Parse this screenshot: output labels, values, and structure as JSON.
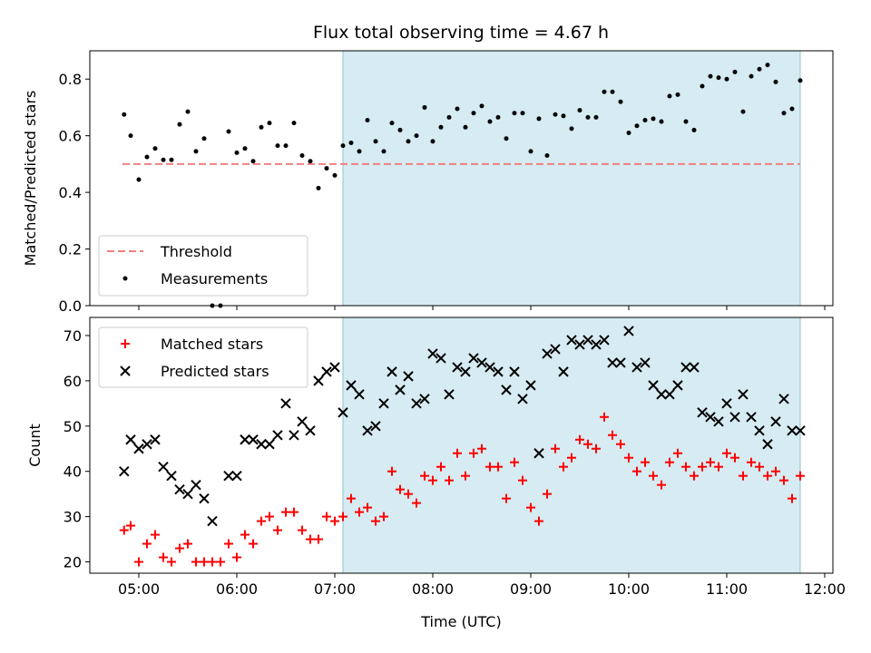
{
  "chart_data": [
    {
      "id": "ratio",
      "type": "scatter",
      "title": "Flux total observing time = 4.67 h",
      "xlabel": "",
      "ylabel": "Matched/Predicted stars",
      "xlim": [
        "04:30",
        "12:05"
      ],
      "ylim": [
        0,
        0.9
      ],
      "yticks": [
        0.0,
        0.2,
        0.4,
        0.6,
        0.8
      ],
      "ytick_labels": [
        "0.0",
        "0.2",
        "0.4",
        "0.6",
        "0.8"
      ],
      "xticks": [
        "05:00",
        "06:00",
        "07:00",
        "08:00",
        "09:00",
        "10:00",
        "11:00",
        "12:00"
      ],
      "shaded_span": [
        "07:05",
        "11:45"
      ],
      "shade_color": "#add8e6",
      "legend_position": "lower-left",
      "threshold": {
        "name": "Threshold",
        "value": 0.5,
        "x_range": [
          "04:50",
          "11:45"
        ],
        "color": "#f08080",
        "style": "dashed"
      },
      "series": [
        {
          "name": "Measurements",
          "marker": "dot",
          "color": "#000000",
          "x": [
            "04:51",
            "04:55",
            "05:00",
            "05:05",
            "05:10",
            "05:15",
            "05:20",
            "05:25",
            "05:30",
            "05:35",
            "05:40",
            "05:45",
            "05:50",
            "05:55",
            "06:00",
            "06:05",
            "06:10",
            "06:15",
            "06:20",
            "06:25",
            "06:30",
            "06:35",
            "06:40",
            "06:45",
            "06:50",
            "06:55",
            "07:00",
            "07:05",
            "07:10",
            "07:15",
            "07:20",
            "07:25",
            "07:30",
            "07:35",
            "07:40",
            "07:45",
            "07:50",
            "07:55",
            "08:00",
            "08:05",
            "08:10",
            "08:15",
            "08:20",
            "08:25",
            "08:30",
            "08:35",
            "08:40",
            "08:45",
            "08:50",
            "08:55",
            "09:00",
            "09:05",
            "09:10",
            "09:15",
            "09:20",
            "09:25",
            "09:30",
            "09:35",
            "09:40",
            "09:45",
            "09:50",
            "09:55",
            "10:00",
            "10:05",
            "10:10",
            "10:15",
            "10:20",
            "10:25",
            "10:30",
            "10:35",
            "10:40",
            "10:45",
            "10:50",
            "10:55",
            "11:00",
            "11:05",
            "11:10",
            "11:15",
            "11:20",
            "11:25",
            "11:30",
            "11:35",
            "11:40",
            "11:45"
          ],
          "y": [
            0.675,
            0.6,
            0.445,
            0.525,
            0.555,
            0.515,
            0.515,
            0.64,
            0.685,
            0.545,
            0.59,
            0.0,
            0.0,
            0.615,
            0.54,
            0.555,
            0.51,
            0.63,
            0.645,
            0.565,
            0.565,
            0.645,
            0.53,
            0.51,
            0.415,
            0.485,
            0.46,
            0.565,
            0.575,
            0.545,
            0.655,
            0.58,
            0.545,
            0.645,
            0.62,
            0.58,
            0.6,
            0.7,
            0.58,
            0.63,
            0.665,
            0.695,
            0.63,
            0.68,
            0.705,
            0.65,
            0.665,
            0.59,
            0.68,
            0.68,
            0.545,
            0.66,
            0.53,
            0.675,
            0.67,
            0.625,
            0.69,
            0.665,
            0.665,
            0.755,
            0.755,
            0.72,
            0.61,
            0.635,
            0.655,
            0.66,
            0.65,
            0.74,
            0.745,
            0.65,
            0.62,
            0.775,
            0.81,
            0.805,
            0.8,
            0.825,
            0.685,
            0.81,
            0.835,
            0.85,
            0.79,
            0.68,
            0.695,
            0.795
          ]
        }
      ]
    },
    {
      "id": "counts",
      "type": "scatter",
      "title": "",
      "xlabel": "Time (UTC)",
      "ylabel": "Count",
      "xlim": [
        "04:30",
        "12:05"
      ],
      "ylim": [
        17.5,
        74
      ],
      "yticks": [
        20,
        30,
        40,
        50,
        60,
        70
      ],
      "ytick_labels": [
        "20",
        "30",
        "40",
        "50",
        "60",
        "70"
      ],
      "xticks": [
        "05:00",
        "06:00",
        "07:00",
        "08:00",
        "09:00",
        "10:00",
        "11:00",
        "12:00"
      ],
      "xtick_labels": [
        "05:00",
        "06:00",
        "07:00",
        "08:00",
        "09:00",
        "10:00",
        "11:00",
        "12:00"
      ],
      "shaded_span": [
        "07:05",
        "11:45"
      ],
      "shade_color": "#add8e6",
      "legend_position": "upper-left",
      "series": [
        {
          "name": "Matched stars",
          "marker": "plus",
          "color": "#ff0000",
          "x": [
            "04:51",
            "04:55",
            "05:00",
            "05:05",
            "05:10",
            "05:15",
            "05:20",
            "05:25",
            "05:30",
            "05:35",
            "05:40",
            "05:45",
            "05:50",
            "05:55",
            "06:00",
            "06:05",
            "06:10",
            "06:15",
            "06:20",
            "06:25",
            "06:30",
            "06:35",
            "06:40",
            "06:45",
            "06:50",
            "06:55",
            "07:00",
            "07:05",
            "07:10",
            "07:15",
            "07:20",
            "07:25",
            "07:30",
            "07:35",
            "07:40",
            "07:45",
            "07:50",
            "07:55",
            "08:00",
            "08:05",
            "08:10",
            "08:15",
            "08:20",
            "08:25",
            "08:30",
            "08:35",
            "08:40",
            "08:45",
            "08:50",
            "08:55",
            "09:00",
            "09:05",
            "09:10",
            "09:15",
            "09:20",
            "09:25",
            "09:30",
            "09:35",
            "09:40",
            "09:45",
            "09:50",
            "09:55",
            "10:00",
            "10:05",
            "10:10",
            "10:15",
            "10:20",
            "10:25",
            "10:30",
            "10:35",
            "10:40",
            "10:45",
            "10:50",
            "10:55",
            "11:00",
            "11:05",
            "11:10",
            "11:15",
            "11:20",
            "11:25",
            "11:30",
            "11:35",
            "11:40",
            "11:45"
          ],
          "y": [
            27,
            28,
            20,
            24,
            26,
            21,
            20,
            23,
            24,
            20,
            20,
            20,
            20,
            24,
            21,
            26,
            24,
            29,
            30,
            27,
            31,
            31,
            27,
            25,
            25,
            30,
            29,
            30,
            34,
            31,
            32,
            29,
            30,
            40,
            36,
            35,
            33,
            39,
            38,
            41,
            38,
            44,
            39,
            44,
            45,
            41,
            41,
            34,
            42,
            38,
            32,
            29,
            35,
            45,
            41,
            43,
            47,
            46,
            45,
            52,
            48,
            46,
            43,
            40,
            42,
            39,
            37,
            42,
            44,
            41,
            39,
            41,
            42,
            41,
            44,
            43,
            39,
            42,
            41,
            39,
            40,
            38,
            34,
            39
          ]
        },
        {
          "name": "Predicted stars",
          "marker": "x",
          "color": "#000000",
          "x": [
            "04:51",
            "04:55",
            "05:00",
            "05:05",
            "05:10",
            "05:15",
            "05:20",
            "05:25",
            "05:30",
            "05:35",
            "05:40",
            "05:45",
            "05:55",
            "06:00",
            "06:05",
            "06:10",
            "06:15",
            "06:20",
            "06:25",
            "06:30",
            "06:35",
            "06:40",
            "06:45",
            "06:50",
            "06:55",
            "07:00",
            "07:05",
            "07:10",
            "07:15",
            "07:20",
            "07:25",
            "07:30",
            "07:35",
            "07:40",
            "07:45",
            "07:50",
            "07:55",
            "08:00",
            "08:05",
            "08:10",
            "08:15",
            "08:20",
            "08:25",
            "08:30",
            "08:35",
            "08:40",
            "08:45",
            "08:50",
            "08:55",
            "09:00",
            "09:05",
            "09:10",
            "09:15",
            "09:20",
            "09:25",
            "09:30",
            "09:35",
            "09:40",
            "09:45",
            "09:50",
            "09:55",
            "10:00",
            "10:05",
            "10:10",
            "10:15",
            "10:20",
            "10:25",
            "10:30",
            "10:35",
            "10:40",
            "10:45",
            "10:50",
            "10:55",
            "11:00",
            "11:05",
            "11:10",
            "11:15",
            "11:20",
            "11:25",
            "11:30",
            "11:35",
            "11:40",
            "11:45"
          ],
          "y": [
            40,
            47,
            45,
            46,
            47,
            41,
            39,
            36,
            35,
            37,
            34,
            29,
            39,
            39,
            47,
            47,
            46,
            46,
            48,
            55,
            48,
            51,
            49,
            60,
            62,
            63,
            53,
            59,
            57,
            49,
            50,
            55,
            62,
            58,
            61,
            55,
            56,
            66,
            65,
            57,
            63,
            62,
            65,
            64,
            63,
            62,
            58,
            62,
            56,
            59,
            44,
            66,
            67,
            62,
            69,
            68,
            69,
            68,
            69,
            64,
            64,
            71,
            63,
            64,
            59,
            57,
            57,
            59,
            63,
            63,
            53,
            52,
            51,
            55,
            52,
            57,
            52,
            49,
            46,
            51,
            56,
            49,
            49
          ]
        }
      ]
    }
  ]
}
